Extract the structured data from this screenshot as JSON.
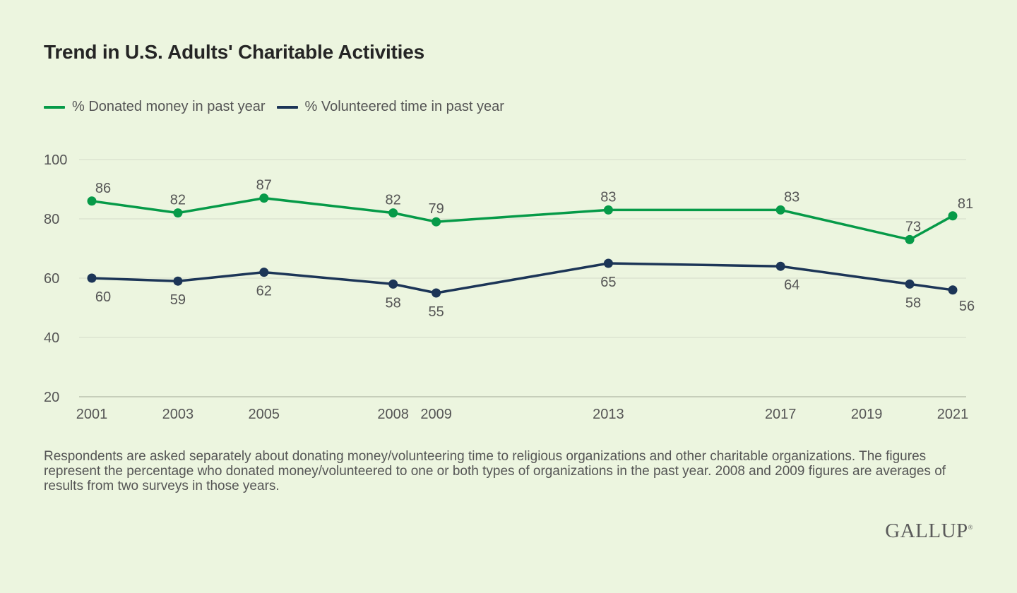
{
  "title": "Trend in U.S. Adults' Charitable Activities",
  "note": "Respondents are asked separately about donating money/volunteering time to religious organizations and other charitable organizations. The figures represent the percentage who donated money/volunteered to one or both types of organizations in the past year. 2008 and 2009 figures are averages of results from two surveys in those years.",
  "logo": "GALLUP",
  "logo_mark": "®",
  "colors": {
    "donated": "#069a48",
    "volunteered": "#1c3557",
    "grid": "#d3dcc8"
  },
  "chart_data": {
    "type": "line",
    "title": "Trend in U.S. Adults' Charitable Activities",
    "xlabel": "",
    "ylabel": "",
    "xlim": [
      2001,
      2021
    ],
    "ylim": [
      20,
      100
    ],
    "x_ticks": [
      2001,
      2003,
      2005,
      2008,
      2009,
      2013,
      2017,
      2019,
      2021
    ],
    "y_ticks": [
      20,
      40,
      60,
      80,
      100
    ],
    "grid": true,
    "legend_position": "top-left",
    "series": [
      {
        "name": "% Donated money in past year",
        "color": "#069a48",
        "x": [
          2001,
          2003,
          2005,
          2008,
          2009,
          2013,
          2017,
          2020,
          2021
        ],
        "values": [
          86,
          82,
          87,
          82,
          79,
          83,
          83,
          73,
          81
        ]
      },
      {
        "name": "% Volunteered time in past year",
        "color": "#1c3557",
        "x": [
          2001,
          2003,
          2005,
          2008,
          2009,
          2013,
          2017,
          2020,
          2021
        ],
        "values": [
          60,
          59,
          62,
          58,
          55,
          65,
          64,
          58,
          56
        ]
      }
    ]
  }
}
